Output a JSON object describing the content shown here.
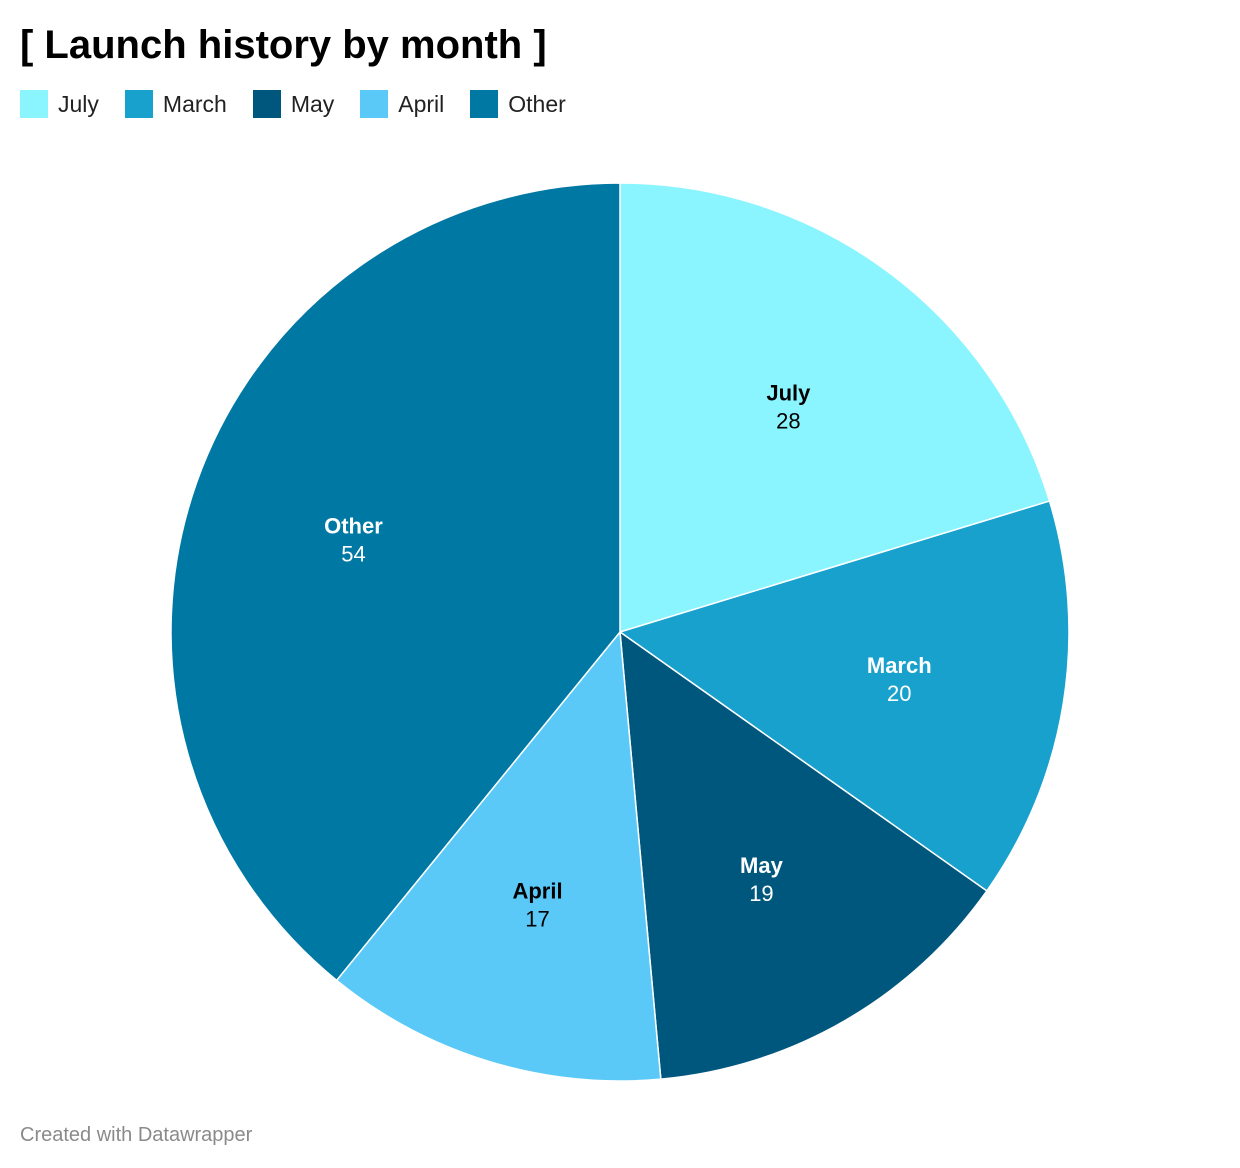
{
  "title": "[ Launch history by month ]",
  "credit": "Created with Datawrapper",
  "legend": [
    {
      "label": "July",
      "color": "#8af5ff"
    },
    {
      "label": "March",
      "color": "#19a1cd"
    },
    {
      "label": "May",
      "color": "#00577d"
    },
    {
      "label": "April",
      "color": "#5ac9f7"
    },
    {
      "label": "Other",
      "color": "#0078a4"
    }
  ],
  "chart_data": {
    "type": "pie",
    "title": "[ Launch history by month ]",
    "legend_position": "top-left",
    "slices": [
      {
        "label": "July",
        "value": 28,
        "color": "#8af5ff",
        "label_color": "#000000"
      },
      {
        "label": "March",
        "value": 20,
        "color": "#19a1cd",
        "label_color": "#ffffff"
      },
      {
        "label": "May",
        "value": 19,
        "color": "#00577d",
        "label_color": "#ffffff"
      },
      {
        "label": "April",
        "value": 17,
        "color": "#5ac9f7",
        "label_color": "#000000"
      },
      {
        "label": "Other",
        "value": 54,
        "color": "#0078a4",
        "label_color": "#ffffff"
      }
    ]
  }
}
